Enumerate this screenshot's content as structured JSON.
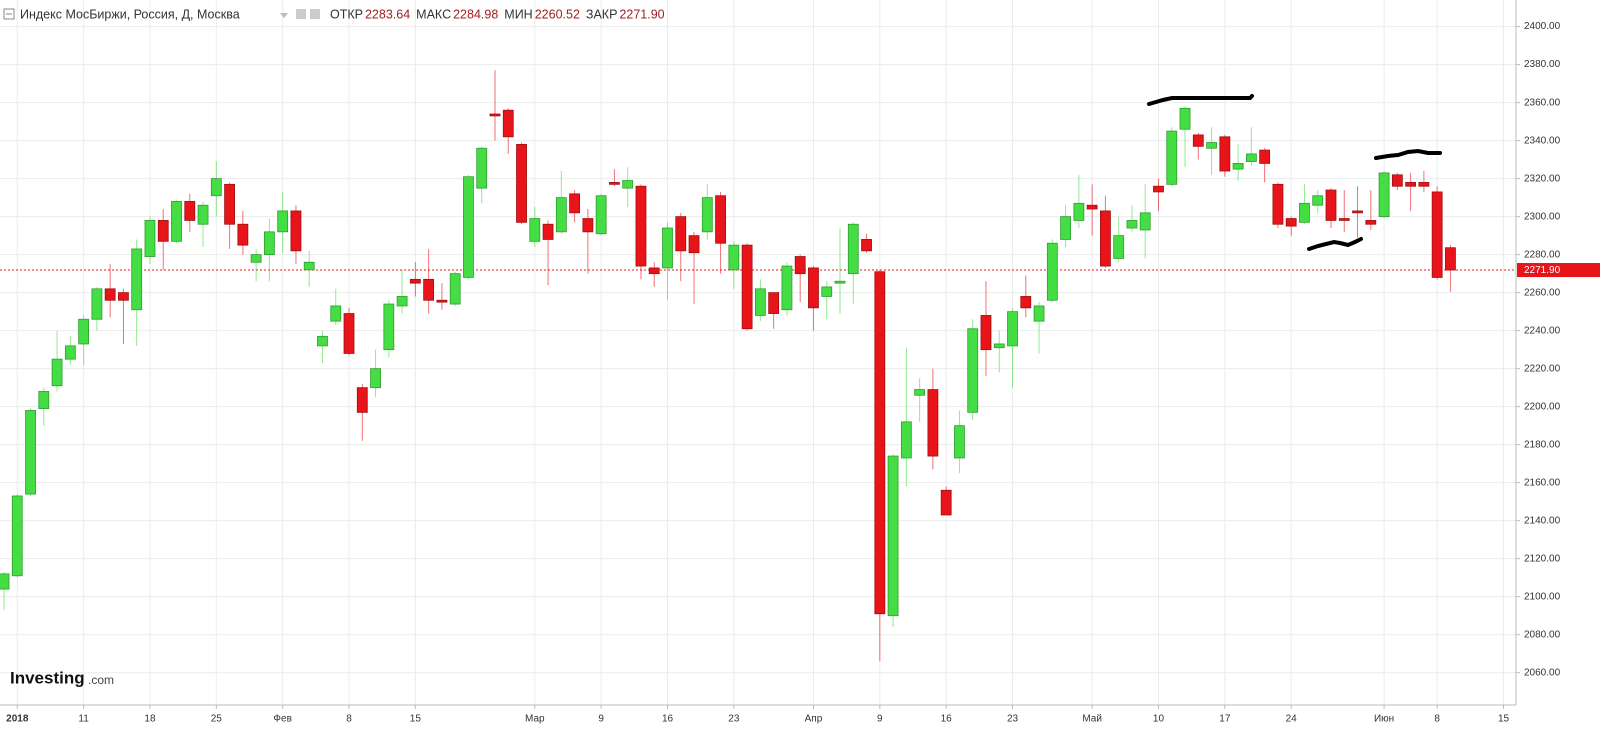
{
  "chart_data": {
    "type": "candlestick",
    "title": "Индекс МосБиржи, Россия, Д, Москва",
    "ohlc_header": [
      {
        "label": "ОТКР",
        "value": "2283.64"
      },
      {
        "label": "МАКС",
        "value": "2284.98"
      },
      {
        "label": "МИН",
        "value": "2260.52"
      },
      {
        "label": "ЗАКР",
        "value": "2271.90"
      }
    ],
    "logo": {
      "brand": "Investing",
      "suffix": ".com"
    },
    "categories": [
      null,
      "2018",
      null,
      null,
      null,
      null,
      "11",
      null,
      null,
      null,
      null,
      "18",
      null,
      null,
      null,
      null,
      "25",
      null,
      null,
      null,
      null,
      "Фев",
      null,
      null,
      null,
      null,
      "8",
      null,
      null,
      null,
      null,
      "15",
      null,
      null,
      null,
      null,
      null,
      null,
      null,
      null,
      "Мар",
      null,
      null,
      null,
      null,
      "9",
      null,
      null,
      null,
      null,
      "16",
      null,
      null,
      null,
      null,
      "23",
      null,
      null,
      null,
      null,
      null,
      "Апр",
      null,
      null,
      null,
      null,
      "9",
      null,
      null,
      null,
      null,
      "16",
      null,
      null,
      null,
      null,
      "23",
      null,
      null,
      null,
      null,
      null,
      "Май",
      null,
      null,
      null,
      null,
      "10",
      null,
      null,
      null,
      null,
      "17",
      null,
      null,
      null,
      null,
      "24",
      null,
      null,
      null,
      null,
      null,
      null,
      "Июн",
      null,
      null,
      null,
      "8",
      null,
      null,
      null,
      null,
      "15"
    ],
    "open": [
      2104,
      2111,
      2154,
      2199,
      2211,
      2225,
      2233,
      2246,
      2262,
      2260,
      2251,
      2279,
      2298,
      2287,
      2308,
      2296,
      2311,
      2317,
      2296,
      2276,
      2280,
      2292,
      2303,
      2272,
      2232,
      2245,
      2249,
      2210,
      2210,
      2230,
      2253,
      2267,
      2267,
      2256,
      2254,
      2268,
      2315,
      2354,
      2356,
      2338,
      2287,
      2296,
      2292,
      2312,
      2299,
      2291,
      2318,
      2315,
      2316,
      2273,
      2273,
      2300,
      2290,
      2292,
      2311,
      2272,
      2285,
      2248,
      2260,
      2251,
      2279,
      2273,
      2258,
      2265,
      2270,
      2288,
      2271,
      2090,
      2173,
      2206,
      2209,
      2156,
      2173,
      2197,
      2248,
      2231,
      2232,
      2258,
      2245,
      2256,
      2288,
      2298,
      2306,
      2303,
      2278,
      2294,
      2293,
      2316,
      2317,
      2346,
      2343,
      2336,
      2342,
      2325,
      2329,
      2335,
      2317,
      2299,
      2297,
      2306,
      2314,
      2299,
      2303,
      2298,
      2300,
      2322,
      2318,
      2318,
      2313,
      2283.64,
      null,
      null,
      null,
      null
    ],
    "high": [
      2113,
      2154,
      2199,
      2210,
      2240,
      2237,
      2248,
      2263,
      2275,
      2262,
      2288,
      2300,
      2304,
      2309,
      2312,
      2308,
      2329,
      2318,
      2303,
      2283,
      2299,
      2313,
      2306,
      2282,
      2240,
      2262,
      2252,
      2212,
      2230,
      2256,
      2272,
      2276,
      2283,
      2265,
      2271,
      2322,
      2337,
      2377,
      2357,
      2339,
      2305,
      2298,
      2324,
      2314,
      2304,
      2312,
      2325,
      2326,
      2317,
      2276,
      2297,
      2302,
      2292,
      2317,
      2313,
      2287,
      2286,
      2267,
      2260,
      2276,
      2280,
      2274,
      2266,
      2294,
      2297,
      2291,
      2272,
      2175,
      2231,
      2215,
      2220,
      2158,
      2198,
      2246,
      2266,
      2240,
      2252,
      2269,
      2255,
      2288,
      2306,
      2322,
      2317,
      2311,
      2300,
      2306,
      2317,
      2320,
      2347,
      2358,
      2344,
      2347,
      2343,
      2338,
      2347,
      2336,
      2318,
      2300,
      2317,
      2314,
      2315,
      2314,
      2316,
      2314,
      2324,
      2323,
      2323,
      2324,
      2316,
      2284.98,
      null,
      null,
      null,
      null
    ],
    "low": [
      2093,
      2110,
      2153,
      2190,
      2208,
      2222,
      2222,
      2240,
      2247,
      2233,
      2232,
      2275,
      2272,
      2286,
      2292,
      2284,
      2300,
      2283,
      2280,
      2266,
      2266,
      2281,
      2275,
      2263,
      2223,
      2243,
      2227,
      2182,
      2205,
      2226,
      2249,
      2258,
      2249,
      2251,
      2253,
      2267,
      2307,
      2340,
      2333,
      2296,
      2284,
      2264,
      2291,
      2297,
      2270,
      2290,
      2316,
      2305,
      2267,
      2263,
      2256,
      2266,
      2254,
      2288,
      2270,
      2262,
      2240,
      2245,
      2241,
      2248,
      2255,
      2240,
      2246,
      2249,
      2254,
      2281,
      2066,
      2084,
      2158,
      2192,
      2167,
      2143,
      2165,
      2193,
      2216,
      2218,
      2210,
      2247,
      2228,
      2255,
      2284,
      2294,
      2290,
      2273,
      2276,
      2292,
      2278,
      2303,
      2316,
      2326,
      2330,
      2322,
      2321,
      2319,
      2327,
      2318,
      2294,
      2290,
      2296,
      2302,
      2294,
      2292,
      2289,
      2293,
      2299,
      2314,
      2303,
      2313,
      2267,
      2260.52,
      null,
      null,
      null,
      null
    ],
    "close": [
      2112,
      2153,
      2198,
      2208,
      2225,
      2232,
      2246,
      2262,
      2256,
      2256,
      2283,
      2298,
      2287,
      2308,
      2298,
      2306,
      2320,
      2296,
      2285,
      2280,
      2292,
      2303,
      2282,
      2276,
      2237,
      2253,
      2228,
      2197,
      2220,
      2254,
      2258,
      2265,
      2256,
      2255,
      2270,
      2321,
      2336,
      2353,
      2342,
      2297,
      2299,
      2288,
      2310,
      2302,
      2292,
      2311,
      2317,
      2319,
      2274,
      2270,
      2294,
      2282,
      2281,
      2310,
      2286,
      2285,
      2241,
      2262,
      2249,
      2274,
      2270,
      2252,
      2263,
      2266,
      2296,
      2282,
      2091,
      2174,
      2192,
      2209,
      2174,
      2143,
      2190,
      2241,
      2230,
      2233,
      2250,
      2252,
      2253,
      2286,
      2300,
      2307,
      2304,
      2274,
      2290,
      2298,
      2302,
      2313,
      2345,
      2357,
      2337,
      2339,
      2324,
      2328,
      2333,
      2328,
      2296,
      2295,
      2307,
      2311,
      2298,
      2298,
      2302,
      2296,
      2323,
      2316,
      2316,
      2316,
      2268,
      2271.9,
      null,
      null,
      null,
      null
    ],
    "up_color": "#44dd44",
    "down_color": "#e8141a",
    "last_price": {
      "value": 2271.9,
      "label": "2271.90"
    },
    "ylim": [
      2043,
      2414
    ],
    "yticks": [
      {
        "value": 2060,
        "label": "2060.00"
      },
      {
        "value": 2080,
        "label": "2080.00"
      },
      {
        "value": 2100,
        "label": "2100.00"
      },
      {
        "value": 2120,
        "label": "2120.00"
      },
      {
        "value": 2140,
        "label": "2140.00"
      },
      {
        "value": 2160,
        "label": "2160.00"
      },
      {
        "value": 2180,
        "label": "2180.00"
      },
      {
        "value": 2200,
        "label": "2200.00"
      },
      {
        "value": 2220,
        "label": "2220.00"
      },
      {
        "value": 2240,
        "label": "2240.00"
      },
      {
        "value": 2260,
        "label": "2260.00"
      },
      {
        "value": 2280,
        "label": "2280.00"
      },
      {
        "value": 2300,
        "label": "2300.00"
      },
      {
        "value": 2320,
        "label": "2320.00"
      },
      {
        "value": 2340,
        "label": "2340.00"
      },
      {
        "value": 2360,
        "label": "2360.00"
      },
      {
        "value": 2380,
        "label": "2380.00"
      },
      {
        "value": 2400,
        "label": "2400.00"
      }
    ],
    "grid": true
  }
}
